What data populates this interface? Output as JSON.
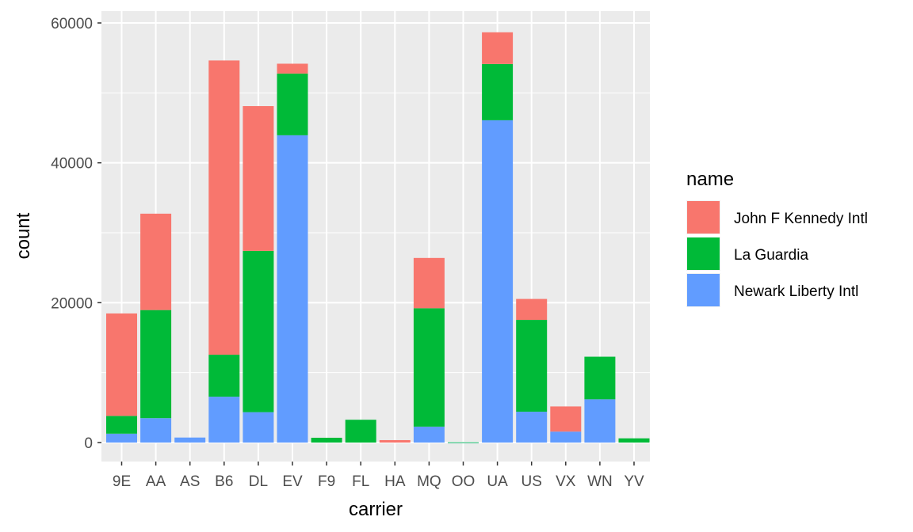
{
  "chart_data": {
    "type": "bar",
    "stacked": true,
    "xlabel": "carrier",
    "ylabel": "count",
    "ylim": [
      0,
      60000
    ],
    "yticks": [
      0,
      20000,
      40000,
      60000
    ],
    "ytick_labels": [
      "0",
      "20000",
      "40000",
      "60000"
    ],
    "grid": true,
    "legend_position": "right",
    "legend_title": "name",
    "categories": [
      "9E",
      "AA",
      "AS",
      "B6",
      "DL",
      "EV",
      "F9",
      "FL",
      "HA",
      "MQ",
      "OO",
      "UA",
      "US",
      "VX",
      "WN",
      "YV"
    ],
    "series": [
      {
        "name": "Newark Liberty Intl",
        "color": "#619CFF",
        "values": [
          1268,
          3487,
          714,
          6557,
          4342,
          43939,
          0,
          0,
          0,
          2276,
          6,
          46087,
          4405,
          1566,
          6188,
          0
        ]
      },
      {
        "name": "La Guardia",
        "color": "#00BA38",
        "values": [
          2541,
          15459,
          0,
          6002,
          23067,
          8826,
          685,
          3260,
          0,
          16928,
          26,
          8044,
          13136,
          0,
          6087,
          601
        ]
      },
      {
        "name": "John F Kennedy Intl",
        "color": "#F8766D",
        "values": [
          14651,
          13783,
          0,
          42076,
          20701,
          1408,
          0,
          0,
          342,
          7193,
          0,
          4534,
          2995,
          3596,
          0,
          0
        ]
      }
    ],
    "legend_order": [
      "John F Kennedy Intl",
      "La Guardia",
      "Newark Liberty Intl"
    ]
  }
}
